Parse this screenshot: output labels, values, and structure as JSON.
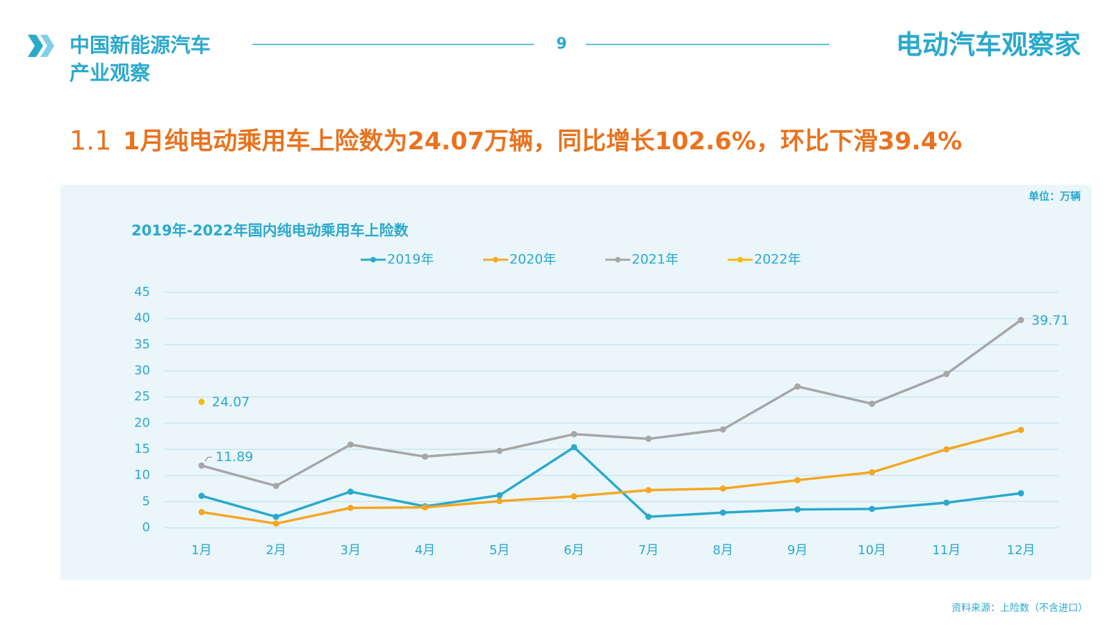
{
  "header": {
    "title_line1": "中国新能源汽车",
    "title_line2": "产业观察",
    "page_number": "9",
    "brand": "电动汽车观察家"
  },
  "section": "1.1",
  "headline": "1月纯电动乘用车上险数为24.07万辆，同比增长102.6%，环比下滑39.4%",
  "unit": "单位：万辆",
  "source": "资料来源：上险数（不含进口）",
  "chart_data": {
    "type": "line",
    "title": "2019年-2022年国内纯电动乘用车上险数",
    "categories": [
      "1月",
      "2月",
      "3月",
      "4月",
      "5月",
      "6月",
      "7月",
      "8月",
      "9月",
      "10月",
      "11月",
      "12月"
    ],
    "series": [
      {
        "name": "2019年",
        "color": "#2aa9cc",
        "values": [
          6.1,
          2.1,
          6.9,
          4.1,
          6.2,
          15.4,
          2.1,
          2.9,
          3.5,
          3.6,
          4.8,
          6.6
        ]
      },
      {
        "name": "2020年",
        "color": "#f5a623",
        "values": [
          3.0,
          0.8,
          3.8,
          3.9,
          5.1,
          6.0,
          7.2,
          7.5,
          9.1,
          10.6,
          15.0,
          18.7
        ]
      },
      {
        "name": "2021年",
        "color": "#a6a6a6",
        "values": [
          11.89,
          8.0,
          15.9,
          13.6,
          14.7,
          17.9,
          17.0,
          18.8,
          27.0,
          23.7,
          29.4,
          39.71
        ],
        "value_labels": [
          "11.89",
          null,
          null,
          null,
          null,
          null,
          null,
          null,
          null,
          null,
          null,
          "39.71"
        ]
      },
      {
        "name": "2022年",
        "color": "#f8b90c",
        "values": [
          24.07,
          null,
          null,
          null,
          null,
          null,
          null,
          null,
          null,
          null,
          null,
          null
        ],
        "value_labels": [
          "24.07",
          null,
          null,
          null,
          null,
          null,
          null,
          null,
          null,
          null,
          null,
          null
        ]
      }
    ],
    "ylim": [
      0,
      45
    ],
    "yticks": [
      0,
      5,
      10,
      15,
      20,
      25,
      30,
      35,
      40,
      45
    ],
    "grid": true,
    "legend": "top"
  }
}
